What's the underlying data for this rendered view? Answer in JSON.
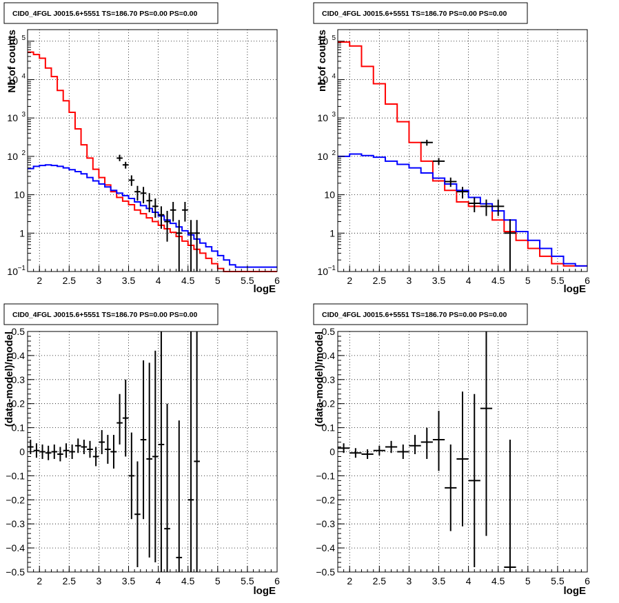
{
  "pads": [
    {
      "title": "CID0_4FGL J0015.6+5551 TS=186.70 PS=0.00 PS=0.00",
      "xlabel": "logE",
      "ylabel": "Nb of counts",
      "colors": {
        "model": "#ff0000",
        "source": "#0000ff",
        "data": "#000000"
      }
    },
    {
      "title": "CID0_4FGL J0015.6+5551 TS=186.70 PS=0.00 PS=0.00",
      "xlabel": "logE",
      "ylabel": "nb of counts",
      "colors": {
        "model": "#ff0000",
        "source": "#0000ff",
        "data": "#000000"
      }
    },
    {
      "title": "CID0_4FGL J0015.6+5551 TS=186.70 PS=0.00 PS=0.00",
      "xlabel": "logE",
      "ylabel": "(data-model)/model",
      "colors": {
        "data": "#000000"
      }
    },
    {
      "title": "CID0_4FGL J0015.6+5551 TS=186.70 PS=0.00 PS=0.00",
      "xlabel": "logE",
      "ylabel": "(data-model)/model",
      "colors": {
        "data": "#000000"
      }
    }
  ],
  "chart_data": [
    {
      "type": "line",
      "scale_y": "log",
      "grid": true,
      "xlim": [
        1.8,
        6.0
      ],
      "ylim": [
        0.1,
        200000
      ],
      "xticks": [
        "2",
        "2.5",
        "3",
        "3.5",
        "4",
        "4.5",
        "5",
        "5.5",
        "6"
      ],
      "yticks": [
        {
          "v": 0.1,
          "main": "10",
          "sup": "−1"
        },
        {
          "v": 1,
          "main": "1",
          "sup": ""
        },
        {
          "v": 10,
          "main": "10",
          "sup": ""
        },
        {
          "v": 100,
          "main": "10",
          "sup": "2"
        },
        {
          "v": 1000,
          "main": "10",
          "sup": "3"
        },
        {
          "v": 10000,
          "main": "10",
          "sup": "4"
        },
        {
          "v": 100000,
          "main": "10",
          "sup": "5"
        }
      ],
      "bin_edges_start": 1.8,
      "bin_width": 0.1,
      "series": [
        {
          "role": "model",
          "color": "#ff0000",
          "values": [
            52000,
            45000,
            36000,
            20000,
            12000,
            5200,
            2800,
            1400,
            520,
            200,
            90,
            46,
            28,
            18,
            12,
            8.5,
            6.8,
            5.5,
            4.0,
            3.2,
            2.5,
            2.0,
            1.6,
            1.3,
            1.05,
            0.82,
            0.62,
            0.48,
            0.38,
            0.3,
            0.22,
            0.16,
            0.12,
            0.1,
            0.1,
            0.1,
            0.1,
            0.1,
            0.1,
            0.1,
            0.1,
            0.1
          ]
        },
        {
          "role": "source",
          "color": "#0000ff",
          "values": [
            48,
            55,
            58,
            60,
            58,
            55,
            50,
            45,
            40,
            35,
            28,
            23,
            19,
            16,
            13,
            11,
            9.5,
            8,
            6.5,
            5.2,
            4.4,
            3.5,
            2.8,
            2.2,
            1.8,
            1.45,
            1.15,
            0.9,
            0.7,
            0.55,
            0.44,
            0.34,
            0.26,
            0.2,
            0.15,
            0.13,
            0.13,
            0.13,
            0.13,
            0.13,
            0.13,
            0.13
          ]
        }
      ],
      "points": [
        {
          "x": 3.35,
          "y": 90,
          "lo": 75,
          "hi": 110
        },
        {
          "x": 3.45,
          "y": 60,
          "lo": 48,
          "hi": 72
        },
        {
          "x": 3.55,
          "y": 24,
          "lo": 17,
          "hi": 32
        },
        {
          "x": 3.65,
          "y": 12,
          "lo": 7,
          "hi": 17
        },
        {
          "x": 3.75,
          "y": 11,
          "lo": 6,
          "hi": 16
        },
        {
          "x": 3.85,
          "y": 7,
          "lo": 3.5,
          "hi": 11
        },
        {
          "x": 3.95,
          "y": 5,
          "lo": 2.5,
          "hi": 8
        },
        {
          "x": 4.05,
          "y": 3,
          "lo": 1.3,
          "hi": 5
        },
        {
          "x": 4.15,
          "y": 2,
          "lo": 0.6,
          "hi": 3.8
        },
        {
          "x": 4.25,
          "y": 4,
          "lo": 2,
          "hi": 6.5
        },
        {
          "x": 4.35,
          "y": 1,
          "lo": 0.1,
          "hi": 2.2
        },
        {
          "x": 4.45,
          "y": 4,
          "lo": 2,
          "hi": 6.5
        },
        {
          "x": 4.55,
          "y": 1,
          "lo": 0.1,
          "hi": 2.2
        },
        {
          "x": 4.65,
          "y": 1,
          "lo": 0.1,
          "hi": 2.2
        }
      ]
    },
    {
      "type": "line",
      "scale_y": "log",
      "grid": true,
      "xlim": [
        1.8,
        6.0
      ],
      "ylim": [
        0.1,
        200000
      ],
      "xticks": [
        "2",
        "2.5",
        "3",
        "3.5",
        "4",
        "4.5",
        "5",
        "5.5",
        "6"
      ],
      "yticks": [
        {
          "v": 0.1,
          "main": "10",
          "sup": "−1"
        },
        {
          "v": 1,
          "main": "1",
          "sup": ""
        },
        {
          "v": 10,
          "main": "10",
          "sup": ""
        },
        {
          "v": 100,
          "main": "10",
          "sup": "2"
        },
        {
          "v": 1000,
          "main": "10",
          "sup": "3"
        },
        {
          "v": 10000,
          "main": "10",
          "sup": "4"
        },
        {
          "v": 100000,
          "main": "10",
          "sup": "5"
        }
      ],
      "bin_edges_start": 1.8,
      "bin_width": 0.2,
      "series": [
        {
          "role": "model",
          "color": "#ff0000",
          "values": [
            95000,
            75000,
            22000,
            7800,
            2300,
            800,
            230,
            75,
            23,
            13,
            6.5,
            5,
            5,
            2.2,
            1.1,
            0.65,
            0.4,
            0.25,
            0.16,
            0.14,
            0.14
          ]
        },
        {
          "role": "source",
          "color": "#0000ff",
          "values": [
            100,
            115,
            105,
            95,
            75,
            62,
            50,
            37,
            27,
            19,
            13,
            8.5,
            5.8,
            3.8,
            2.2,
            1.1,
            0.65,
            0.4,
            0.25,
            0.16,
            0.14
          ]
        }
      ],
      "points": [
        {
          "x": 3.3,
          "y": 230,
          "lo": 190,
          "hi": 270
        },
        {
          "x": 3.5,
          "y": 75,
          "lo": 60,
          "hi": 90
        },
        {
          "x": 3.7,
          "y": 22,
          "lo": 16,
          "hi": 28
        },
        {
          "x": 3.9,
          "y": 12,
          "lo": 8,
          "hi": 16
        },
        {
          "x": 4.1,
          "y": 6,
          "lo": 3.5,
          "hi": 8.5
        },
        {
          "x": 4.3,
          "y": 5,
          "lo": 2.8,
          "hi": 7.5
        },
        {
          "x": 4.5,
          "y": 5,
          "lo": 2.8,
          "hi": 7.5
        },
        {
          "x": 4.7,
          "y": 1,
          "lo": 0.1,
          "hi": 2.3
        }
      ]
    },
    {
      "type": "scatter",
      "scale_y": "linear",
      "grid": true,
      "xlim": [
        1.8,
        6.0
      ],
      "ylim": [
        -0.5,
        0.5
      ],
      "xticks": [
        "2",
        "2.5",
        "3",
        "3.5",
        "4",
        "4.5",
        "5",
        "5.5",
        "6"
      ],
      "yticks": [
        {
          "v": -0.5,
          "main": "−0.5",
          "sup": ""
        },
        {
          "v": -0.4,
          "main": "−0.4",
          "sup": ""
        },
        {
          "v": -0.3,
          "main": "−0.3",
          "sup": ""
        },
        {
          "v": -0.2,
          "main": "−0.2",
          "sup": ""
        },
        {
          "v": -0.1,
          "main": "−0.1",
          "sup": ""
        },
        {
          "v": 0,
          "main": "0",
          "sup": ""
        },
        {
          "v": 0.1,
          "main": "0.1",
          "sup": ""
        },
        {
          "v": 0.2,
          "main": "0.2",
          "sup": ""
        },
        {
          "v": 0.3,
          "main": "0.3",
          "sup": ""
        },
        {
          "v": 0.4,
          "main": "0.4",
          "sup": ""
        },
        {
          "v": 0.5,
          "main": "0.5",
          "sup": ""
        }
      ],
      "xerr": 0.05,
      "points": [
        {
          "x": 1.85,
          "y": 0.02,
          "lo": -0.01,
          "hi": 0.05
        },
        {
          "x": 1.95,
          "y": 0.005,
          "lo": -0.025,
          "hi": 0.035
        },
        {
          "x": 2.05,
          "y": 0.0,
          "lo": -0.03,
          "hi": 0.03
        },
        {
          "x": 2.15,
          "y": -0.005,
          "lo": -0.035,
          "hi": 0.025
        },
        {
          "x": 2.25,
          "y": 0.0,
          "lo": -0.03,
          "hi": 0.03
        },
        {
          "x": 2.35,
          "y": -0.01,
          "lo": -0.04,
          "hi": 0.02
        },
        {
          "x": 2.45,
          "y": 0.005,
          "lo": -0.025,
          "hi": 0.035
        },
        {
          "x": 2.55,
          "y": 0.0,
          "lo": -0.03,
          "hi": 0.03
        },
        {
          "x": 2.65,
          "y": 0.025,
          "lo": -0.005,
          "hi": 0.055
        },
        {
          "x": 2.75,
          "y": 0.02,
          "lo": -0.01,
          "hi": 0.05
        },
        {
          "x": 2.85,
          "y": 0.01,
          "lo": -0.025,
          "hi": 0.045
        },
        {
          "x": 2.95,
          "y": -0.02,
          "lo": -0.06,
          "hi": 0.02
        },
        {
          "x": 3.05,
          "y": 0.04,
          "lo": -0.01,
          "hi": 0.09
        },
        {
          "x": 3.15,
          "y": 0.01,
          "lo": -0.05,
          "hi": 0.07
        },
        {
          "x": 3.25,
          "y": 0.0,
          "lo": -0.07,
          "hi": 0.07
        },
        {
          "x": 3.35,
          "y": 0.12,
          "lo": 0.03,
          "hi": 0.24
        },
        {
          "x": 3.45,
          "y": 0.14,
          "lo": -0.02,
          "hi": 0.3
        },
        {
          "x": 3.55,
          "y": -0.1,
          "lo": -0.28,
          "hi": 0.08
        },
        {
          "x": 3.65,
          "y": -0.26,
          "lo": -0.48,
          "hi": -0.04
        },
        {
          "x": 3.75,
          "y": 0.05,
          "lo": -0.28,
          "hi": 0.38
        },
        {
          "x": 3.85,
          "y": -0.03,
          "lo": -0.44,
          "hi": 0.37
        },
        {
          "x": 3.95,
          "y": -0.02,
          "lo": -0.46,
          "hi": 0.42
        },
        {
          "x": 4.05,
          "y": 0.03,
          "lo": -0.5,
          "hi": 0.5
        },
        {
          "x": 4.15,
          "y": -0.32,
          "lo": -0.5,
          "hi": 0.2
        },
        {
          "x": 4.35,
          "y": -0.44,
          "lo": -0.5,
          "hi": 0.13
        },
        {
          "x": 4.55,
          "y": -0.2,
          "lo": -0.5,
          "hi": 0.5
        },
        {
          "x": 4.65,
          "y": -0.04,
          "lo": -0.5,
          "hi": 0.5
        }
      ]
    },
    {
      "type": "scatter",
      "scale_y": "linear",
      "grid": true,
      "xlim": [
        1.8,
        6.0
      ],
      "ylim": [
        -0.5,
        0.5
      ],
      "xticks": [
        "2",
        "2.5",
        "3",
        "3.5",
        "4",
        "4.5",
        "5",
        "5.5",
        "6"
      ],
      "yticks": [
        {
          "v": -0.5,
          "main": "−0.5",
          "sup": ""
        },
        {
          "v": -0.4,
          "main": "−0.4",
          "sup": ""
        },
        {
          "v": -0.3,
          "main": "−0.3",
          "sup": ""
        },
        {
          "v": -0.2,
          "main": "−0.2",
          "sup": ""
        },
        {
          "v": -0.1,
          "main": "−0.1",
          "sup": ""
        },
        {
          "v": 0,
          "main": "0",
          "sup": ""
        },
        {
          "v": 0.1,
          "main": "0.1",
          "sup": ""
        },
        {
          "v": 0.2,
          "main": "0.2",
          "sup": ""
        },
        {
          "v": 0.3,
          "main": "0.3",
          "sup": ""
        },
        {
          "v": 0.4,
          "main": "0.4",
          "sup": ""
        },
        {
          "v": 0.5,
          "main": "0.5",
          "sup": ""
        }
      ],
      "xerr": 0.1,
      "points": [
        {
          "x": 1.9,
          "y": 0.015,
          "lo": -0.005,
          "hi": 0.035
        },
        {
          "x": 2.1,
          "y": -0.005,
          "lo": -0.025,
          "hi": 0.015
        },
        {
          "x": 2.3,
          "y": -0.01,
          "lo": -0.03,
          "hi": 0.01
        },
        {
          "x": 2.5,
          "y": 0.005,
          "lo": -0.015,
          "hi": 0.025
        },
        {
          "x": 2.7,
          "y": 0.02,
          "lo": -0.005,
          "hi": 0.045
        },
        {
          "x": 2.9,
          "y": 0.0,
          "lo": -0.03,
          "hi": 0.03
        },
        {
          "x": 3.1,
          "y": 0.025,
          "lo": -0.01,
          "hi": 0.07
        },
        {
          "x": 3.3,
          "y": 0.04,
          "lo": -0.03,
          "hi": 0.1
        },
        {
          "x": 3.5,
          "y": 0.05,
          "lo": -0.08,
          "hi": 0.17
        },
        {
          "x": 3.7,
          "y": -0.15,
          "lo": -0.33,
          "hi": 0.03
        },
        {
          "x": 3.9,
          "y": -0.03,
          "lo": -0.31,
          "hi": 0.25
        },
        {
          "x": 4.1,
          "y": -0.12,
          "lo": -0.48,
          "hi": 0.24
        },
        {
          "x": 4.3,
          "y": 0.18,
          "lo": -0.35,
          "hi": 0.5
        },
        {
          "x": 4.7,
          "y": -0.48,
          "lo": -0.5,
          "hi": 0.05
        }
      ]
    }
  ]
}
